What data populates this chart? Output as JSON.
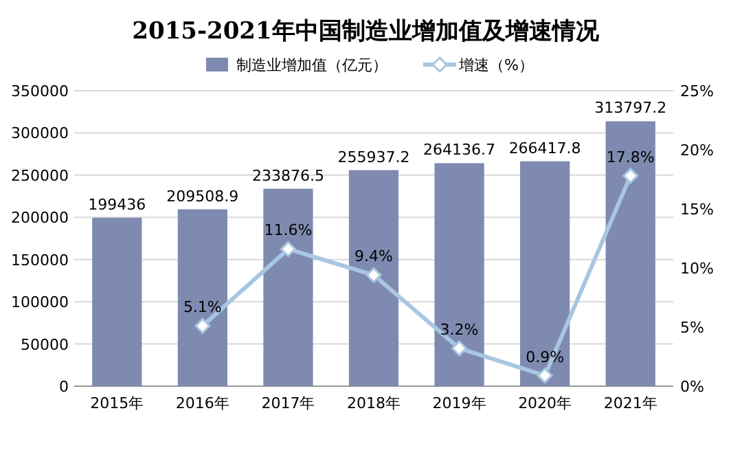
{
  "chart_data": {
    "type": "bar",
    "title": "2015-2021年中国制造业增加值及增速情况",
    "categories": [
      "2015年",
      "2016年",
      "2017年",
      "2018年",
      "2019年",
      "2020年",
      "2021年"
    ],
    "series": [
      {
        "name": "制造业增加值（亿元）",
        "color": "#7f8ab0",
        "values": [
          199436,
          209508.9,
          233876.5,
          255937.2,
          264136.7,
          266417.8,
          313797.2
        ],
        "value_labels": [
          "199436",
          "209508.9",
          "233876.5",
          "255937.2",
          "264136.7",
          "266417.8",
          "313797.2"
        ]
      },
      {
        "name": "增速（%）",
        "type": "line",
        "axis": "y2",
        "color": "#a8c6e0",
        "values": [
          null,
          5.1,
          11.6,
          9.4,
          3.2,
          0.9,
          17.8
        ],
        "value_labels": [
          null,
          "5.1%",
          "11.6%",
          "9.4%",
          "3.2%",
          "0.9%",
          "17.8%"
        ]
      }
    ],
    "ylim": [
      0,
      350000
    ],
    "yticks": [
      0,
      50000,
      100000,
      150000,
      200000,
      250000,
      300000,
      350000
    ],
    "y2lim": [
      0,
      25
    ],
    "y2ticks": [
      {
        "value": 0,
        "label": "0%"
      },
      {
        "value": 5,
        "label": "5%"
      },
      {
        "value": 10,
        "label": "10%"
      },
      {
        "value": 15,
        "label": "15%"
      },
      {
        "value": 20,
        "label": "20%"
      },
      {
        "value": 25,
        "label": "25%"
      }
    ],
    "grid": "y",
    "legend": "top",
    "marker": "diamond",
    "line_style": "solid"
  }
}
